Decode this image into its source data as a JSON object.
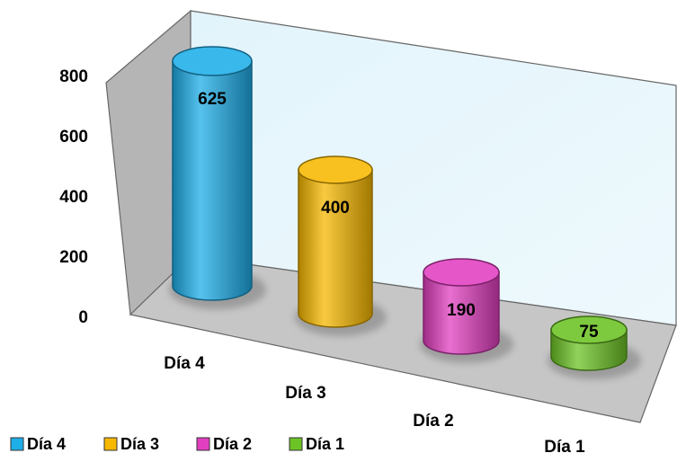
{
  "chart_data": {
    "type": "bar",
    "style": "3d-cylinder",
    "categories": [
      "Día 4",
      "Día 3",
      "Día 2",
      "Día 1"
    ],
    "values": [
      625,
      400,
      190,
      75
    ],
    "data_labels": [
      "625",
      "400",
      "190",
      "75"
    ],
    "y_ticks": [
      "0",
      "200",
      "400",
      "600",
      "800"
    ],
    "ylim": [
      0,
      800
    ],
    "grid": false,
    "legend": {
      "placement": "bottom-left",
      "entries": [
        "Día 4",
        "Día 3",
        "Día 2",
        "Día 1"
      ]
    },
    "colors": [
      "#1eaee8",
      "#f7b800",
      "#e23fc0",
      "#6cc325"
    ]
  }
}
